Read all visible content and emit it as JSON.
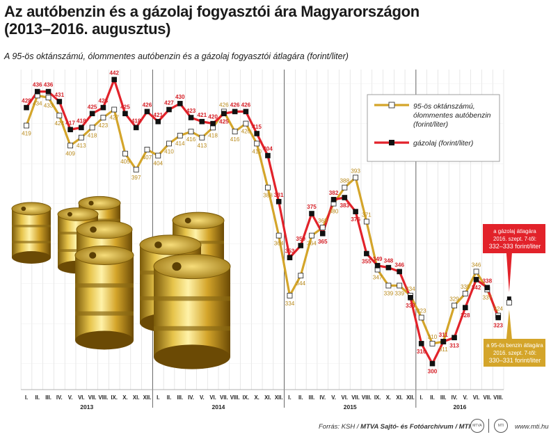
{
  "header": {
    "title_line1": "Az autóbenzin és a gázolaj fogyasztói ára Magyarországon",
    "title_line2": "(2013–2016. augusztus)",
    "subtitle": "A 95-ös oktánszámú, ólommentes autóbenzin és a gázolaj fogyasztói átlagára (forint/liter)"
  },
  "chart_data": {
    "type": "line",
    "title": "Az autóbenzin és a gázolaj fogyasztói ára Magyarországon (2013–2016. augusztus)",
    "ylabel": "forint/liter",
    "ylim": [
      287,
      447
    ],
    "month_labels": [
      "I.",
      "II.",
      "III.",
      "IV.",
      "V.",
      "VI.",
      "VII.",
      "VIII.",
      "IX.",
      "X.",
      "XI.",
      "XII.",
      "I.",
      "II.",
      "III.",
      "IV.",
      "V.",
      "VI.",
      "VII.",
      "VIII.",
      "IX.",
      "X.",
      "XI.",
      "XII.",
      "I.",
      "II.",
      "III.",
      "IV.",
      "V.",
      "VI.",
      "VII.",
      "VIII.",
      "IX.",
      "X.",
      "XI.",
      "XII.",
      "I.",
      "II.",
      "III.",
      "IV.",
      "V.",
      "VI.",
      "VII.",
      "VIII."
    ],
    "years": [
      {
        "label": "2013",
        "start": 0,
        "count": 12
      },
      {
        "label": "2014",
        "start": 12,
        "count": 12
      },
      {
        "label": "2015",
        "start": 24,
        "count": 12
      },
      {
        "label": "2016",
        "start": 36,
        "count": 8
      }
    ],
    "series": [
      {
        "name": "95-ös oktánszámú, ólommentes autóbenzin (forint/liter)",
        "color": "#d4a52a",
        "values": [
          419,
          434,
          433,
          424,
          409,
          413,
          418,
          423,
          427,
          405,
          397,
          407,
          404,
          410,
          414,
          416,
          413,
          418,
          426,
          416,
          420,
          410,
          388,
          364,
          334,
          344,
          364,
          368,
          380,
          388,
          393,
          371,
          347,
          339,
          339,
          334,
          323,
          310,
          311,
          329,
          335,
          346,
          337,
          324
        ]
      },
      {
        "name": "gázolaj (forint/liter)",
        "color": "#e2222a",
        "values": [
          428,
          436,
          436,
          431,
          417,
          418,
          425,
          428,
          442,
          425,
          418,
          426,
          421,
          427,
          430,
          423,
          421,
          420,
          425,
          426,
          426,
          415,
          404,
          381,
          353,
          359,
          375,
          365,
          382,
          383,
          376,
          355,
          349,
          348,
          346,
          333,
          310,
          300,
          311,
          313,
          328,
          342,
          338,
          323
        ]
      }
    ],
    "legend": {
      "benzin_label_lines": [
        "95-ös oktánszámú,",
        "ólommentes autóbenzin",
        "(forint/liter)"
      ],
      "diesel_label": "gázolaj (forint/liter)",
      "position": "top-right"
    },
    "annotations": {
      "diesel_forecast_lines": [
        "a gázolaj átlagára",
        "2016. szept. 7-től:",
        "332–333 forint/liter"
      ],
      "benzin_forecast_lines": [
        "a 95-ös benzin átlagára",
        "2016. szept. 7-től:",
        "330–331 forint/liter"
      ]
    }
  },
  "footer": {
    "source_prefix": "Forrás: KSH / ",
    "source_bold": "MTVA Sajtó- és Fotóarchívum / MTI",
    "url": "www.mti.hu",
    "logo1": "MTVA",
    "logo2": "MTI"
  }
}
